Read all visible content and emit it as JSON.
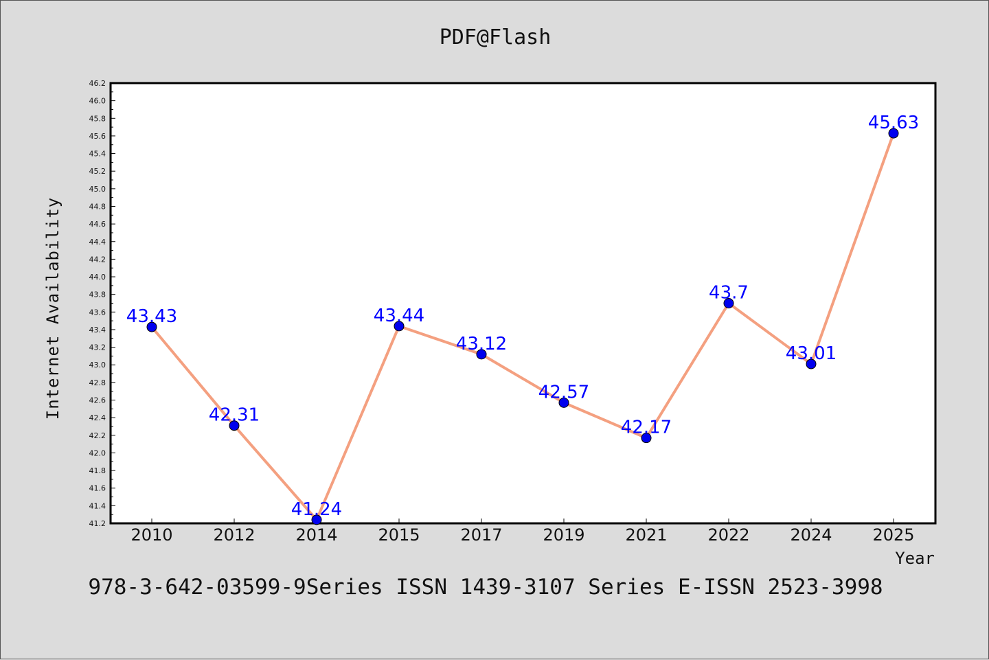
{
  "chart_data": {
    "type": "line",
    "title": "PDF@Flash",
    "xlabel": "Year",
    "ylabel": "Internet Availability",
    "categories": [
      "2010",
      "2012",
      "2014",
      "2015",
      "2017",
      "2019",
      "2021",
      "2022",
      "2024",
      "2025"
    ],
    "series": [
      {
        "values": [
          43.43,
          42.31,
          41.24,
          43.44,
          43.12,
          42.57,
          42.17,
          43.7,
          43.01,
          45.63
        ],
        "labels": [
          "43.43",
          "42.31",
          "41.24",
          "43.44",
          "43.12",
          "42.57",
          "42.17",
          "43.7",
          "43.01",
          "45.63"
        ],
        "line_color": "#f4a080",
        "marker_color": "#0000ee",
        "label_color": "#0000ff"
      }
    ],
    "ylim": [
      41.2,
      46.2
    ],
    "yticks": [
      "41.2",
      "41.4",
      "41.6",
      "41.8",
      "42.0",
      "42.2",
      "42.4",
      "42.6",
      "42.8",
      "43.0",
      "43.2",
      "43.4",
      "43.6",
      "43.8",
      "44.0",
      "44.2",
      "44.4",
      "44.6",
      "44.8",
      "45.0",
      "45.2",
      "45.4",
      "45.6",
      "45.8",
      "46.0",
      "46.2"
    ],
    "grid": false,
    "legend": "none",
    "plot_background": "#ffffff"
  },
  "footer": {
    "text": "978-3-642-03599-9Series ISSN 1439-3107 Series E-ISSN 2523-3998"
  }
}
